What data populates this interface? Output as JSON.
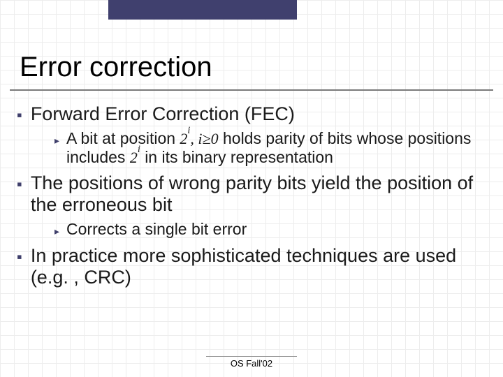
{
  "title": "Error correction",
  "bullets": {
    "p1": "Forward Error Correction (FEC)",
    "p1a_pre": "A bit at position ",
    "p1a_math1": "2",
    "p1a_math1_sup": "i",
    "p1a_math1_tail": ", i≥0",
    "p1a_mid": " holds parity of bits whose positions includes ",
    "p1a_math2": "2",
    "p1a_math2_sup": "i",
    "p1a_post": " in its binary representation",
    "p2": "The positions of wrong parity bits yield the position of the erroneous bit",
    "p2a": "Corrects a single bit error",
    "p3": "In practice more sophisticated techniques are used (e.g. , CRC)"
  },
  "footer": "OS Fall'02",
  "colors": {
    "topbar": "#40406e",
    "bullet": "#3f3f6b",
    "grid": "#ededed",
    "underline": "#7a7a7a"
  }
}
